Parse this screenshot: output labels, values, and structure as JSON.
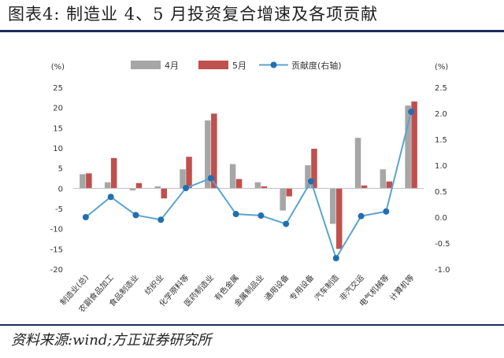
{
  "header": {
    "title": "图表4:   制造业 4、5 月投资复合增速及各项贡献"
  },
  "footer": {
    "source": "资料来源:wind;方正证券研究所"
  },
  "chart_data": {
    "type": "bar",
    "categories": [
      "制造业(总)",
      "农副食品加工",
      "食品制造业",
      "纺织业",
      "化学原料等",
      "医药制造业",
      "有色金属",
      "金属制品业",
      "通用设备",
      "专用设备",
      "汽车制造",
      "非汽交运",
      "电气机械等",
      "计算机等"
    ],
    "series": [
      {
        "name": "4月",
        "kind": "bar",
        "axis": "left",
        "color": "#a6a6a6",
        "values": [
          3.5,
          1.5,
          -0.5,
          0.5,
          4.7,
          16.8,
          6.0,
          1.5,
          -5.5,
          5.7,
          -8.8,
          12.5,
          4.7,
          20.5
        ]
      },
      {
        "name": "5月",
        "kind": "bar",
        "axis": "left",
        "color": "#c0504d",
        "values": [
          3.7,
          7.5,
          1.3,
          -2.5,
          7.8,
          18.5,
          2.3,
          0.5,
          -2.0,
          9.8,
          -15.0,
          0.7,
          1.7,
          21.5
        ]
      },
      {
        "name": "贡献度(右轴)",
        "kind": "line",
        "axis": "right",
        "color": "#5ba3d0",
        "marker_color": "#1f6fb2",
        "values": [
          0.0,
          0.39,
          0.04,
          -0.05,
          0.56,
          0.75,
          0.06,
          0.03,
          -0.13,
          0.69,
          -0.79,
          0.02,
          0.11,
          2.03
        ]
      }
    ],
    "left_axis": {
      "label": "(%)",
      "ylim": [
        -20,
        25
      ],
      "ticks": [
        -20,
        -15,
        -10,
        -5,
        0,
        5,
        10,
        15,
        20,
        25
      ]
    },
    "right_axis": {
      "label": "(%)",
      "ylim": [
        -1.0,
        2.5
      ],
      "ticks": [
        "-1.0",
        "-0.5",
        "0.0",
        "0.5",
        "1.0",
        "1.5",
        "2.0",
        "2.5"
      ]
    },
    "legend_position": "top",
    "grid": false
  }
}
